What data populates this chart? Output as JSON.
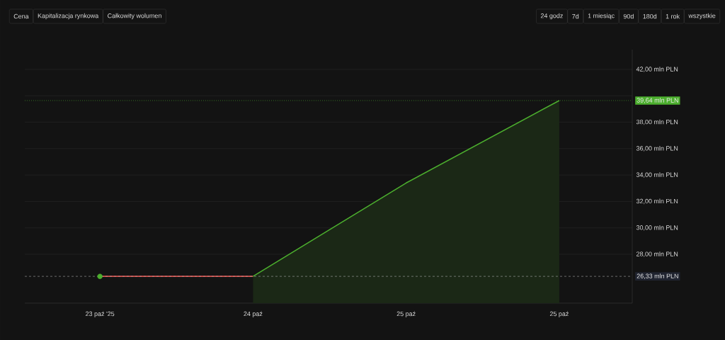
{
  "chart_data": {
    "type": "line",
    "categories": [
      "23 paź '25",
      "24 paź",
      "25 paź",
      "25 paź"
    ],
    "series": [
      {
        "color": "#d9534f",
        "values": [
          26.33,
          26.33,
          null,
          null
        ]
      },
      {
        "type": "area",
        "color": "#4caf2e",
        "values": [
          null,
          26.33,
          33.4,
          39.64
        ]
      },
      {
        "type": "scatter",
        "color": "#4caf2e",
        "values": [
          26.33,
          null,
          null,
          null
        ]
      }
    ],
    "ylim": [
      24.3,
      43.5
    ],
    "yticks": [
      {
        "value": 28,
        "label": "28,00 mln PLN"
      },
      {
        "value": 30,
        "label": "30,00 mln PLN"
      },
      {
        "value": 32,
        "label": "32,00 mln PLN"
      },
      {
        "value": 34,
        "label": "34,00 mln PLN"
      },
      {
        "value": 36,
        "label": "36,00 mln PLN"
      },
      {
        "value": 38,
        "label": "38,00 mln PLN"
      },
      {
        "value": 40,
        "label": null
      },
      {
        "value": 42,
        "label": "42,00 mln PLN"
      }
    ],
    "ref_lines": [
      {
        "axis": "y",
        "value": 39.64,
        "label": "39,64 mln PLN",
        "color": "#4caf2e",
        "line_style": "dotted"
      },
      {
        "axis": "y",
        "value": 26.33,
        "label": "26,33 mln PLN",
        "color": "#aaaaaa",
        "line_style": "dashed"
      }
    ],
    "grid": "y",
    "annotations": [
      "Cena",
      "Kapitalizacja rynkowa",
      "Całkowity wolumen",
      "24 godz",
      "7d",
      "1 miesiąc",
      "90d",
      "180d",
      "1 rok",
      "wszystkie"
    ]
  }
}
